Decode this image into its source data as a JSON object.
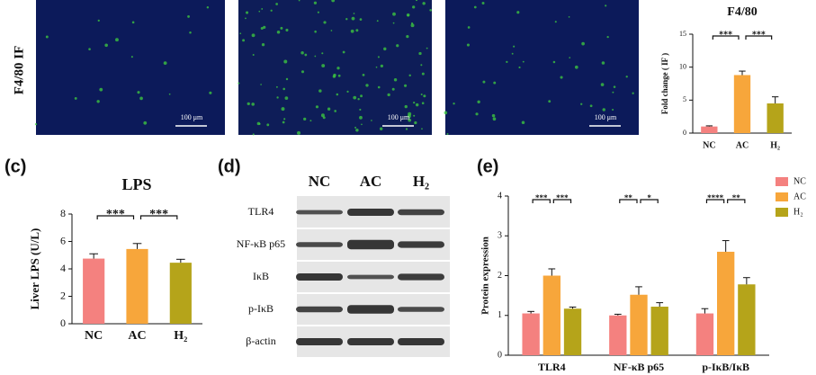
{
  "if_panel": {
    "label": "F4/80 IF",
    "scale_bars": [
      "100 μm",
      "100 μm",
      "100 μm"
    ]
  },
  "blot_panel": {
    "label": "(d)",
    "columns": [
      "NC",
      "AC",
      "H₂"
    ],
    "rows": [
      "TLR4",
      "NF-κB p65",
      "IκB",
      "p-IκB",
      "β-actin"
    ]
  },
  "chart_data": [
    {
      "type": "bar",
      "title": "F4/80",
      "y_label": "Fold change ( IF )",
      "categories": [
        "NC",
        "AC",
        "H₂"
      ],
      "values": [
        1.0,
        8.8,
        4.5
      ],
      "errors": [
        0.1,
        0.6,
        1.0
      ],
      "colors": [
        "#f4817f",
        "#f7a63b",
        "#b5a41a"
      ],
      "ylim": [
        0,
        15
      ],
      "yticks": [
        0,
        5,
        10,
        15
      ],
      "significance": [
        "***",
        "***"
      ]
    },
    {
      "type": "bar",
      "panel": "(c)",
      "title": "LPS",
      "y_label": "Liver LPS (U/L)",
      "categories": [
        "NC",
        "AC",
        "H₂"
      ],
      "values": [
        4.75,
        5.45,
        4.45
      ],
      "errors": [
        0.35,
        0.4,
        0.25
      ],
      "colors": [
        "#f4817f",
        "#f7a63b",
        "#b5a41a"
      ],
      "ylim": [
        0,
        8
      ],
      "yticks": [
        0,
        2,
        4,
        6,
        8
      ],
      "significance": [
        "***",
        "***"
      ]
    },
    {
      "type": "grouped-bar",
      "panel": "(e)",
      "y_label": "Protein expression",
      "categories": [
        "TLR4",
        "NF-κB p65",
        "p-IκB/IκB"
      ],
      "series": [
        {
          "name": "NC",
          "color": "#f4817f",
          "values": [
            1.05,
            1.0,
            1.05
          ],
          "errors": [
            0.05,
            0.03,
            0.12
          ]
        },
        {
          "name": "AC",
          "color": "#f7a63b",
          "values": [
            2.0,
            1.52,
            2.6
          ],
          "errors": [
            0.17,
            0.2,
            0.28
          ]
        },
        {
          "name": "H₂",
          "color": "#b5a41a",
          "values": [
            1.17,
            1.22,
            1.78
          ],
          "errors": [
            0.04,
            0.1,
            0.17
          ]
        }
      ],
      "ylim": [
        0,
        4
      ],
      "yticks": [
        0,
        1,
        2,
        3,
        4
      ],
      "significance": [
        [
          "***",
          "***"
        ],
        [
          "**",
          "*"
        ],
        [
          "****",
          "**"
        ]
      ]
    }
  ]
}
